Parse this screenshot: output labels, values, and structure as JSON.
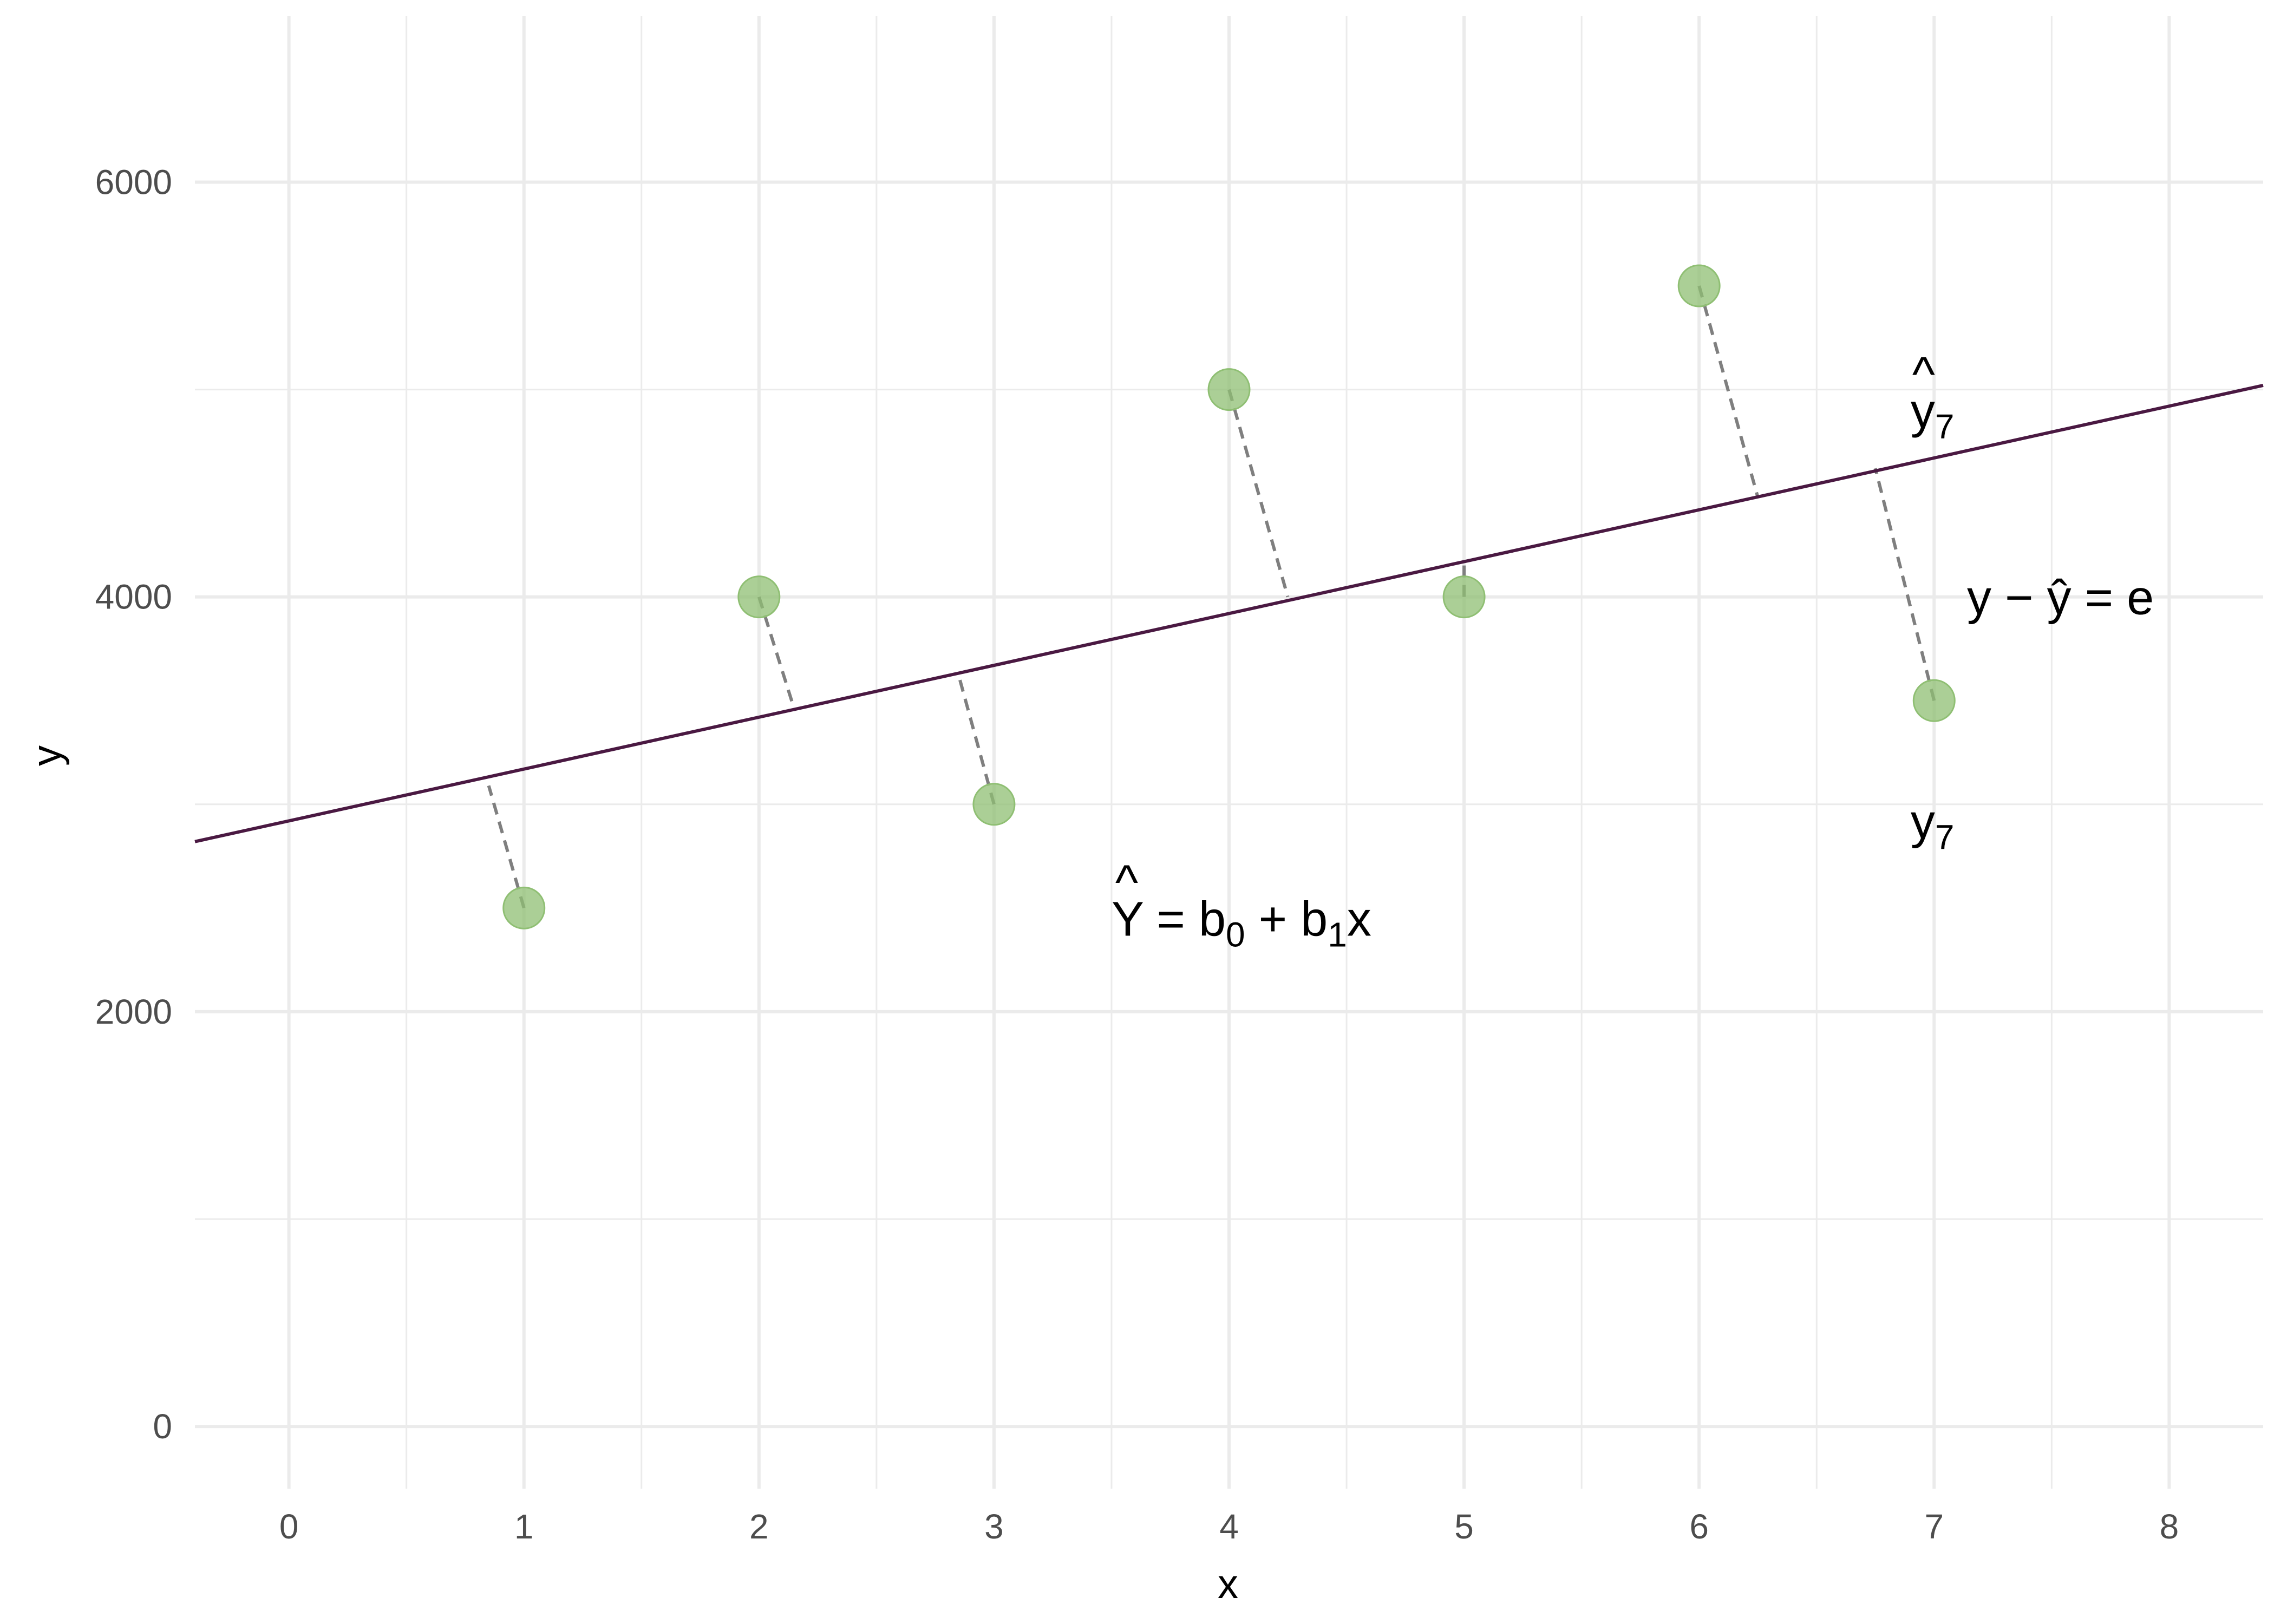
{
  "chart_data": {
    "type": "scatter",
    "title": "",
    "xlabel": "x",
    "ylabel": "y",
    "xlim": [
      -0.4,
      8.4
    ],
    "ylim": [
      -300,
      6800
    ],
    "x_ticks": [
      0,
      1,
      2,
      3,
      4,
      5,
      6,
      7,
      8
    ],
    "x_tick_labels": [
      "0",
      "1",
      "2",
      "3",
      "4",
      "5",
      "6",
      "7",
      "8"
    ],
    "y_ticks": [
      0,
      2000,
      4000,
      6000
    ],
    "y_tick_labels": [
      "0",
      "2000",
      "4000",
      "6000"
    ],
    "grid": true,
    "legend": "none",
    "points": {
      "x": [
        1,
        2,
        3,
        4,
        5,
        6,
        7
      ],
      "y": [
        2500,
        4000,
        3000,
        5000,
        4000,
        5500,
        3500
      ],
      "color": "#8fbf73"
    },
    "regression_line": {
      "intercept": 2920,
      "slope": 250,
      "color": "#4a1942"
    },
    "residual_segments": [
      {
        "x1": 1,
        "y1": 2500,
        "x2": 0.85,
        "y2": 3090
      },
      {
        "x1": 2,
        "y1": 4000,
        "x2": 2.15,
        "y2": 3460
      },
      {
        "x1": 3,
        "y1": 3000,
        "x2": 2.85,
        "y2": 3620
      },
      {
        "x1": 4,
        "y1": 5000,
        "x2": 4.25,
        "y2": 4000
      },
      {
        "x1": 5,
        "y1": 4000,
        "x2": 5.0,
        "y2": 4170
      },
      {
        "x1": 6,
        "y1": 5500,
        "x2": 6.25,
        "y2": 4480
      },
      {
        "x1": 7,
        "y1": 3500,
        "x2": 6.75,
        "y2": 4620
      }
    ],
    "residual_color": "#7f7f7f",
    "annotations": [
      {
        "id": "eq",
        "x": 3.5,
        "y": 2450,
        "base": "Y",
        "hat": true,
        "rest": [
          [
            "=",
            ""
          ],
          [
            "b",
            "0"
          ],
          [
            "+",
            ""
          ],
          [
            "b",
            "1"
          ],
          [
            "x",
            ""
          ]
        ]
      },
      {
        "id": "yhat7",
        "x": 6.9,
        "y": 4900,
        "base": "y",
        "hat": true,
        "sub": "7"
      },
      {
        "id": "y7",
        "x": 6.9,
        "y": 2920,
        "base": "y",
        "hat": false,
        "sub": "7"
      },
      {
        "id": "resid",
        "x": 7.14,
        "y": 4000,
        "text_parts": [
          "y",
          "−",
          "ŷ",
          "=",
          "e"
        ]
      }
    ]
  }
}
